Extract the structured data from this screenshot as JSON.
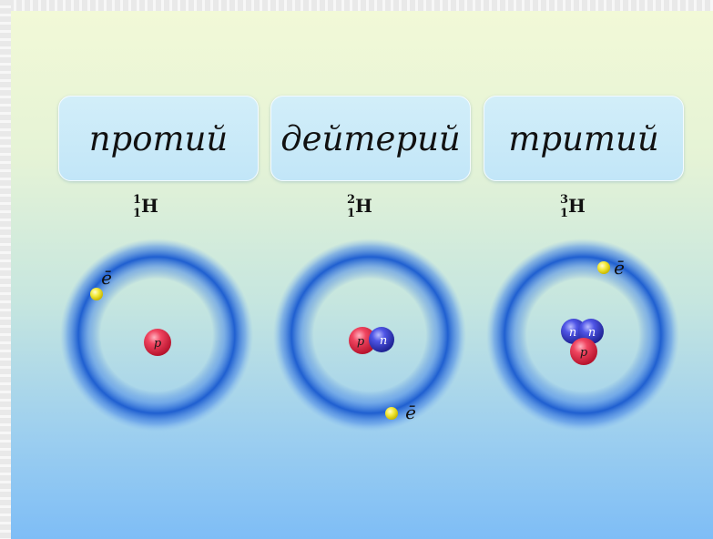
{
  "isotopes": [
    {
      "name": "протий",
      "mass_number": "1",
      "atomic_number": "1",
      "symbol": "H",
      "protons": 1,
      "neutrons": 0
    },
    {
      "name": "дейтерий",
      "mass_number": "2",
      "atomic_number": "1",
      "symbol": "H",
      "protons": 1,
      "neutrons": 1
    },
    {
      "name": "тритий",
      "mass_number": "3",
      "atomic_number": "1",
      "symbol": "H",
      "protons": 1,
      "neutrons": 2
    }
  ],
  "particle_labels": {
    "electron": "ē",
    "proton": "p",
    "neutron": "n"
  },
  "colors": {
    "orbit": "#2f6fd8",
    "electron": "#f3ea3b",
    "proton": "#e31d3a",
    "neutron": "#3a3fd6",
    "name_box": "#c9eaf8"
  }
}
